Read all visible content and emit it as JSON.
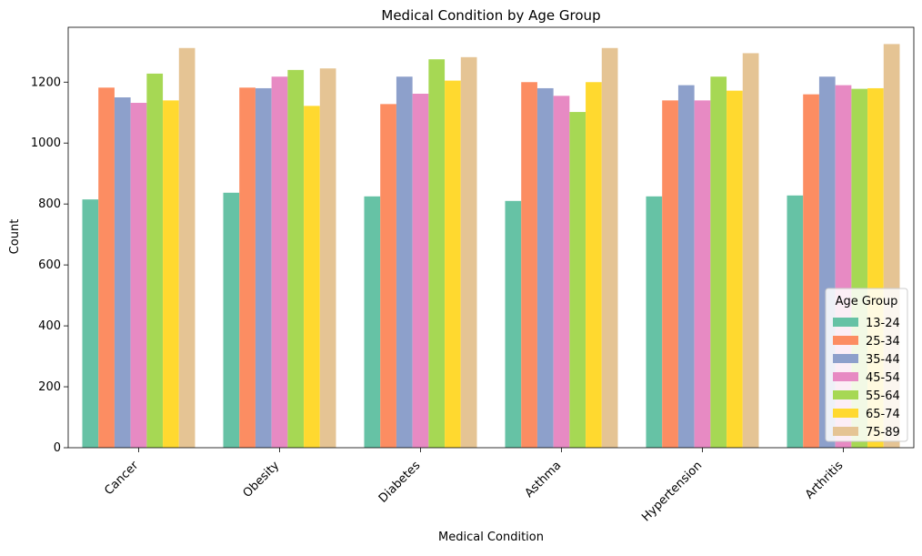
{
  "chart_data": {
    "type": "bar",
    "title": "Medical Condition by Age Group",
    "xlabel": "Medical Condition",
    "ylabel": "Count",
    "ylim": [
      0,
      1380
    ],
    "yticks": [
      0,
      200,
      400,
      600,
      800,
      1000,
      1200
    ],
    "grid": false,
    "legend_position": "lower-right",
    "legend_title": "Age Group",
    "categories": [
      "Cancer",
      "Obesity",
      "Diabetes",
      "Asthma",
      "Hypertension",
      "Arthritis"
    ],
    "series": [
      {
        "name": "13-24",
        "color": "#66c2a5",
        "values": [
          815,
          837,
          825,
          810,
          825,
          828
        ]
      },
      {
        "name": "25-34",
        "color": "#fc8d62",
        "values": [
          1182,
          1182,
          1128,
          1200,
          1140,
          1160
        ]
      },
      {
        "name": "35-44",
        "color": "#8da0cb",
        "values": [
          1150,
          1180,
          1218,
          1180,
          1190,
          1218
        ]
      },
      {
        "name": "45-54",
        "color": "#e78ac3",
        "values": [
          1132,
          1218,
          1162,
          1155,
          1140,
          1190
        ]
      },
      {
        "name": "55-64",
        "color": "#a6d854",
        "values": [
          1228,
          1240,
          1275,
          1102,
          1218,
          1178
        ]
      },
      {
        "name": "65-74",
        "color": "#ffd92f",
        "values": [
          1140,
          1122,
          1205,
          1200,
          1172,
          1180
        ]
      },
      {
        "name": "75-89",
        "color": "#e5c494",
        "values": [
          1312,
          1245,
          1282,
          1312,
          1295,
          1325
        ]
      }
    ]
  }
}
